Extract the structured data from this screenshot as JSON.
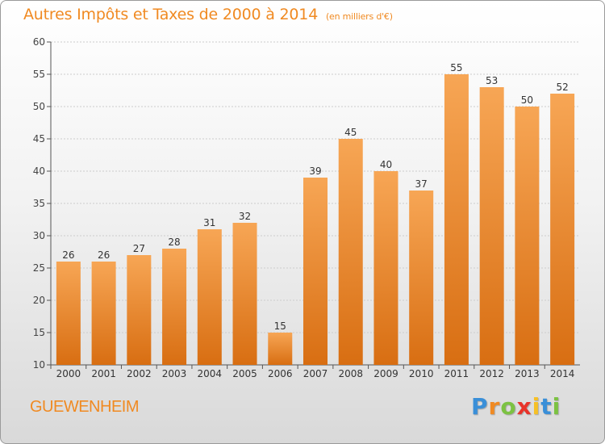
{
  "header": {
    "title": "Autres Impôts et Taxes de 2000 à 2014",
    "unit": "(en milliers d'€)"
  },
  "footer": {
    "commune": "GUEWENHEIM",
    "logo_letters": [
      "P",
      "r",
      "o",
      "x",
      "i",
      "t",
      "i"
    ],
    "logo_colors": [
      "#3a8fd8",
      "#f08a22",
      "#7cc242",
      "#e8332a",
      "#f6c026",
      "#3a8fd8",
      "#7cc242"
    ]
  },
  "colors": {
    "bar_top": "#f7a655",
    "bar_bottom": "#d86e12",
    "accent": "#f08a22",
    "grid": "#cccccc"
  },
  "chart_data": {
    "type": "bar",
    "title": "Autres Impôts et Taxes de 2000 à 2014",
    "categories": [
      "2000",
      "2001",
      "2002",
      "2003",
      "2004",
      "2005",
      "2006",
      "2007",
      "2008",
      "2009",
      "2010",
      "2011",
      "2012",
      "2013",
      "2014"
    ],
    "values": [
      26,
      26,
      27,
      28,
      31,
      32,
      15,
      39,
      45,
      40,
      37,
      55,
      53,
      50,
      52
    ],
    "ylim": [
      10,
      60
    ],
    "yticks": [
      10,
      15,
      20,
      25,
      30,
      35,
      40,
      45,
      50,
      55,
      60
    ],
    "grid": true
  }
}
